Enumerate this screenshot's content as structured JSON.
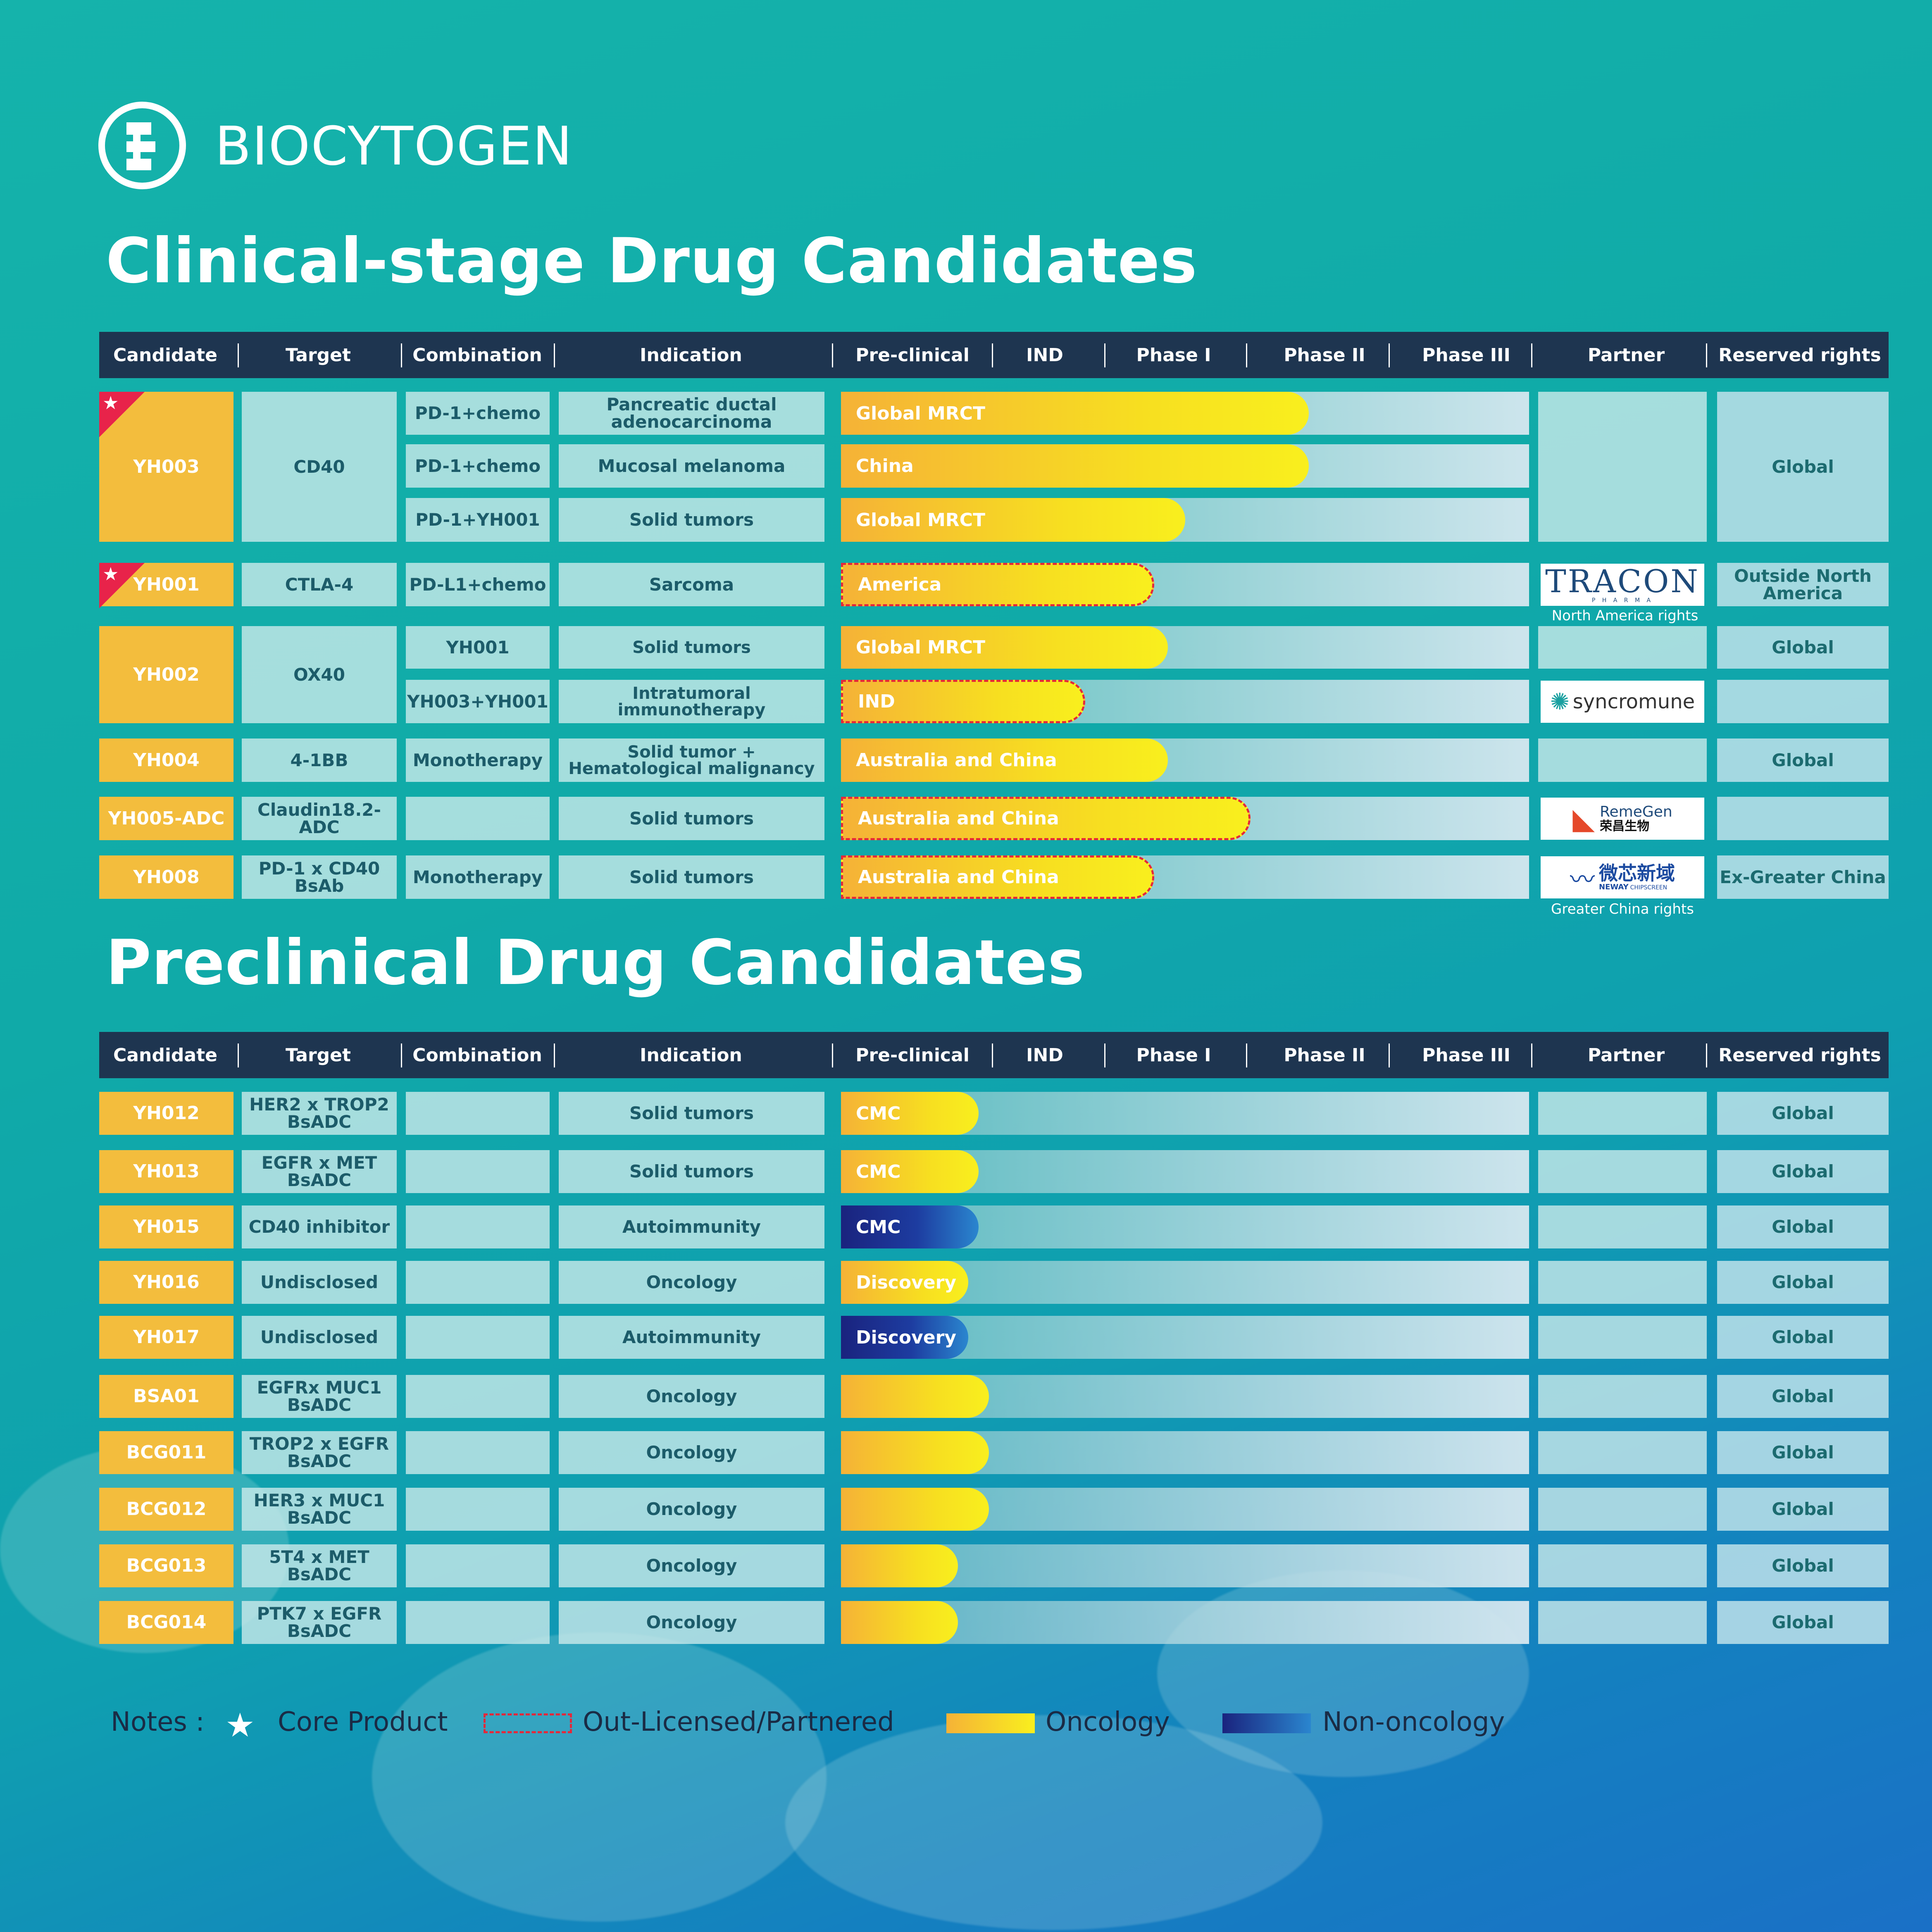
{
  "brand": {
    "name": "BIOCYTOGEN"
  },
  "titles": {
    "clinical": "Clinical-stage Drug Candidates",
    "preclinical": "Preclinical Drug Candidates"
  },
  "headers": [
    "Candidate",
    "Target",
    "Combination",
    "Indication",
    "Pre-clinical",
    "IND",
    "Phase I",
    "Phase II",
    "Phase III",
    "Partner",
    "Reserved rights"
  ],
  "colors": {
    "oncology": "#f7df20",
    "non_oncology": "#1a237e",
    "partnered_border": "#e5283a",
    "header_bg": "#1e3550",
    "candidate_bg": "#f3bd3d"
  },
  "clinical": {
    "yh003": {
      "candidate": "YH003",
      "target": "CD40",
      "rights": "Global",
      "rows": [
        {
          "combination": "PD-1+chemo",
          "indication": "Pancreatic ductal adenocarcinoma",
          "bar": "Global MRCT",
          "progress": 0.68
        },
        {
          "combination": "PD-1+chemo",
          "indication": "Mucosal melanoma",
          "bar": "China",
          "progress": 0.68
        },
        {
          "combination": "PD-1+YH001",
          "indication": "Solid tumors",
          "bar": "Global MRCT",
          "progress": 0.5
        }
      ]
    },
    "yh001": {
      "candidate": "YH001",
      "target": "CTLA-4",
      "combination": "PD-L1+chemo",
      "indication": "Sarcoma",
      "bar": "America",
      "progress": 0.455,
      "partner": "TRACON",
      "partner_sub": "P H A R M A",
      "partner_note": "North America rights",
      "rights": "Outside North America"
    },
    "yh002": {
      "candidate": "YH002",
      "target": "OX40",
      "rows": [
        {
          "combination": "YH001",
          "indication": "Solid tumors",
          "bar": "Global MRCT",
          "progress": 0.475,
          "rights": "Global"
        },
        {
          "combination": "YH003+YH001",
          "indication": "Intratumoral immunotherapy",
          "bar": "IND",
          "progress": 0.355,
          "partner": "syncromune",
          "rights": ""
        }
      ]
    },
    "yh004": {
      "candidate": "YH004",
      "target": "4-1BB",
      "combination": "Monotherapy",
      "indication": "Solid tumor + Hematological malignancy",
      "bar": "Australia and China",
      "progress": 0.475,
      "rights": "Global"
    },
    "yh005": {
      "candidate": "YH005-ADC",
      "target": "Claudin18.2-ADC",
      "combination": "",
      "indication": "Solid tumors",
      "bar": "Australia and China",
      "progress": 0.595,
      "partner": "RemeGen",
      "partner_cn": "荣昌生物",
      "rights": ""
    },
    "yh008": {
      "candidate": "YH008",
      "target": "PD-1 x CD40 BsAb",
      "combination": "Monotherapy",
      "indication": "Solid tumors",
      "bar": "Australia and China",
      "progress": 0.455,
      "partner": "微芯新域",
      "partner_en": "NEWAY",
      "partner_en2": "CHIPSCREEN",
      "partner_note": "Greater China rights",
      "rights": "Ex-Greater China"
    }
  },
  "preclinical": [
    {
      "candidate": "YH012",
      "target": "HER2 x TROP2 BsADC",
      "indication": "Solid tumors",
      "bar": "CMC",
      "type": "oncology",
      "progress": 0.2,
      "rights": "Global"
    },
    {
      "candidate": "YH013",
      "target": "EGFR x MET BsADC",
      "indication": "Solid tumors",
      "bar": "CMC",
      "type": "oncology",
      "progress": 0.2,
      "rights": "Global"
    },
    {
      "candidate": "YH015",
      "target": "CD40 inhibitor",
      "indication": "Autoimmunity",
      "bar": "CMC",
      "type": "non-oncology",
      "progress": 0.2,
      "rights": "Global"
    },
    {
      "candidate": "YH016",
      "target": "Undisclosed",
      "indication": "Oncology",
      "bar": "Discovery",
      "type": "oncology",
      "progress": 0.185,
      "rights": "Global"
    },
    {
      "candidate": "YH017",
      "target": "Undisclosed",
      "indication": "Autoimmunity",
      "bar": "Discovery",
      "type": "non-oncology",
      "progress": 0.185,
      "rights": "Global"
    },
    {
      "candidate": "BSA01",
      "target": "EGFRx MUC1 BsADC",
      "indication": "Oncology",
      "bar": "",
      "type": "oncology",
      "progress": 0.215,
      "rights": "Global"
    },
    {
      "candidate": "BCG011",
      "target": "TROP2 x EGFR BsADC",
      "indication": "Oncology",
      "bar": "",
      "type": "oncology",
      "progress": 0.215,
      "rights": "Global"
    },
    {
      "candidate": "BCG012",
      "target": "HER3 x MUC1 BsADC",
      "indication": "Oncology",
      "bar": "",
      "type": "oncology",
      "progress": 0.215,
      "rights": "Global"
    },
    {
      "candidate": "BCG013",
      "target": "5T4 x MET BsADC",
      "indication": "Oncology",
      "bar": "",
      "type": "oncology",
      "progress": 0.17,
      "rights": "Global"
    },
    {
      "candidate": "BCG014",
      "target": "PTK7 x EGFR BsADC",
      "indication": "Oncology",
      "bar": "",
      "type": "oncology",
      "progress": 0.17,
      "rights": "Global"
    }
  ],
  "notes": {
    "label": "Notes :",
    "core": "Core Product",
    "licensed": "Out-Licensed/Partnered",
    "oncology": "Oncology",
    "non_oncology": "Non-oncology"
  }
}
